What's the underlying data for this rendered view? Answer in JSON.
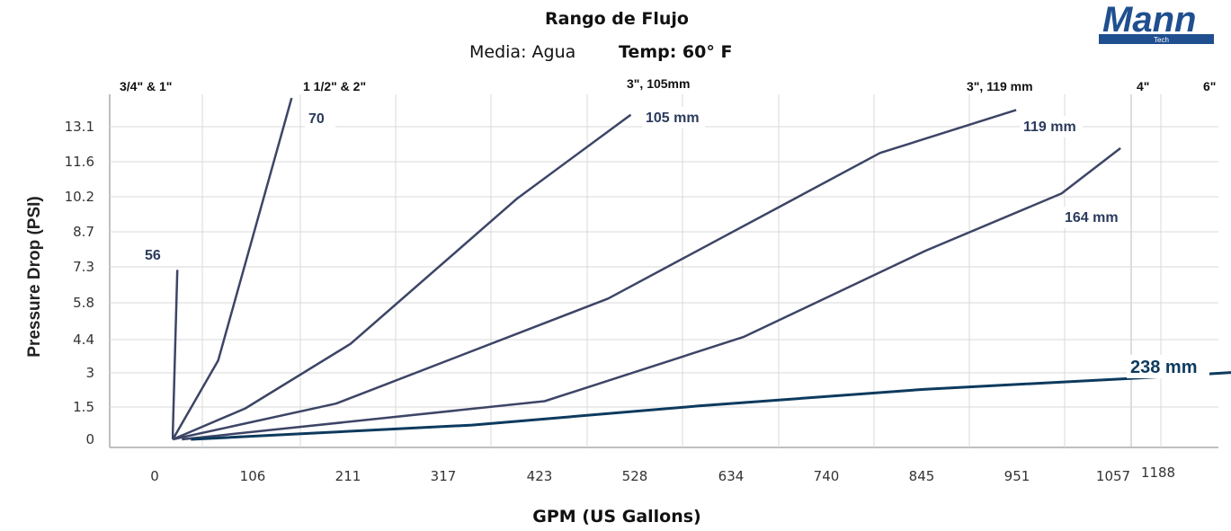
{
  "logo": {
    "text": "Mann",
    "subtext": "Tech"
  },
  "header": {
    "title": "Rango de Flujo",
    "media": "Media: Agua",
    "temp": "Temp: 60° F"
  },
  "pipe_sizes": [
    "3/4\" & 1\"",
    "1 1/2\" & 2\"",
    "3\", 105mm",
    "3\", 119 mm",
    "4\"",
    "6\""
  ],
  "chart_data": {
    "type": "line",
    "title": "Rango de Flujo",
    "xlabel": "GPM (US Gallons)",
    "ylabel": "Pressure Drop (PSI)",
    "x_ticks": [
      "0",
      "106",
      "211",
      "317",
      "423",
      "528",
      "634",
      "740",
      "845",
      "951",
      "1057",
      "1188"
    ],
    "y_ticks": [
      "0",
      "1.5",
      "3",
      "4.4",
      "5.8",
      "7.3",
      "8.7",
      "10.2",
      "11.6",
      "13.1"
    ],
    "xlim": [
      0,
      1188
    ],
    "ylim": [
      0,
      14.5
    ],
    "grid": true,
    "colors": {
      "series": "#3d4566",
      "series_238": "#0d3a5e",
      "grid": "#d8d8d8"
    },
    "series": [
      {
        "name": "56",
        "x": [
          20,
          20,
          25
        ],
        "y": [
          0,
          0.3,
          7.1
        ]
      },
      {
        "name": "70",
        "x": [
          20,
          70,
          151
        ],
        "y": [
          0,
          3.3,
          14.3
        ]
      },
      {
        "name": "105 mm",
        "x": [
          20,
          100,
          216,
          400,
          525
        ],
        "y": [
          0,
          1.3,
          4.0,
          10.1,
          13.6
        ]
      },
      {
        "name": "119 mm",
        "x": [
          20,
          200,
          500,
          800,
          950
        ],
        "y": [
          0,
          1.5,
          5.9,
          12.0,
          13.8
        ]
      },
      {
        "name": "164 mm",
        "x": [
          30,
          430,
          650,
          850,
          1000,
          1065
        ],
        "y": [
          0,
          1.6,
          4.3,
          7.9,
          10.3,
          12.2
        ]
      },
      {
        "name": "238 mm",
        "x": [
          40,
          350,
          600,
          850,
          1100,
          1188
        ],
        "y": [
          0,
          0.6,
          1.4,
          2.1,
          2.6,
          2.8
        ]
      }
    ]
  }
}
